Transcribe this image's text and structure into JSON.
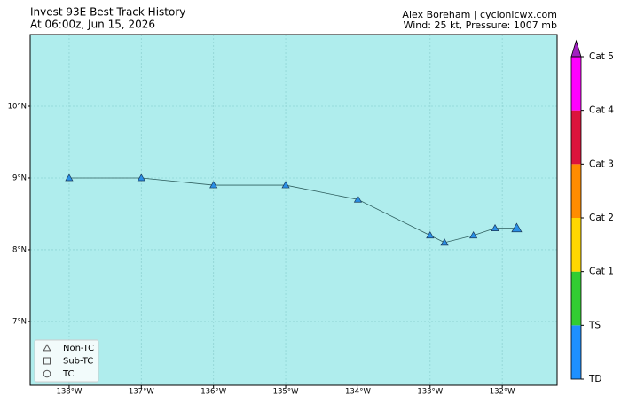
{
  "chart_data": {
    "type": "track",
    "title": "Invest 93E Best Track History",
    "subtitle": "At 06:00z, Jun 15, 2026",
    "credit": "Alex Boreham | cyclonicwx.com",
    "status": "Wind: 25 kt, Pressure: 1007 mb",
    "x": [
      -138,
      -137,
      -136,
      -135,
      -134,
      -133,
      -132.8,
      -132.4,
      -132.1,
      -131.8
    ],
    "values": [
      9,
      9,
      8.9,
      8.9,
      8.7,
      8.2,
      8.1,
      8.2,
      8.3,
      8.3
    ],
    "color": "#2a8fe6",
    "line_color": "#2f5f5f",
    "background": "#afeded",
    "xlim": [
      -138.54,
      -131.24
    ],
    "ylim": [
      6.11,
      11.0
    ],
    "xticks": [
      {
        "value": -138,
        "label": "138°W"
      },
      {
        "value": -137,
        "label": "137°W"
      },
      {
        "value": -136,
        "label": "136°W"
      },
      {
        "value": -135,
        "label": "135°W"
      },
      {
        "value": -134,
        "label": "134°W"
      },
      {
        "value": -133,
        "label": "133°W"
      },
      {
        "value": -132,
        "label": "132°W"
      }
    ],
    "yticks": [
      {
        "value": 7,
        "label": "7°N"
      },
      {
        "value": 8,
        "label": "8°N"
      },
      {
        "value": 9,
        "label": "9°N"
      },
      {
        "value": 10,
        "label": "10°N"
      }
    ],
    "grid": true,
    "legend": [
      "Non-TC",
      "Sub-TC",
      "TC"
    ],
    "legend_position": "lower left",
    "colorbar": {
      "labels": [
        "TD",
        "TS",
        "Cat 1",
        "Cat 2",
        "Cat 3",
        "Cat 4",
        "Cat 5"
      ],
      "colors": [
        "#1e90ff",
        "#32cd32",
        "#ffd700",
        "#ff8c00",
        "#dc143c",
        "#ff00ff",
        "#a020c0"
      ]
    }
  }
}
